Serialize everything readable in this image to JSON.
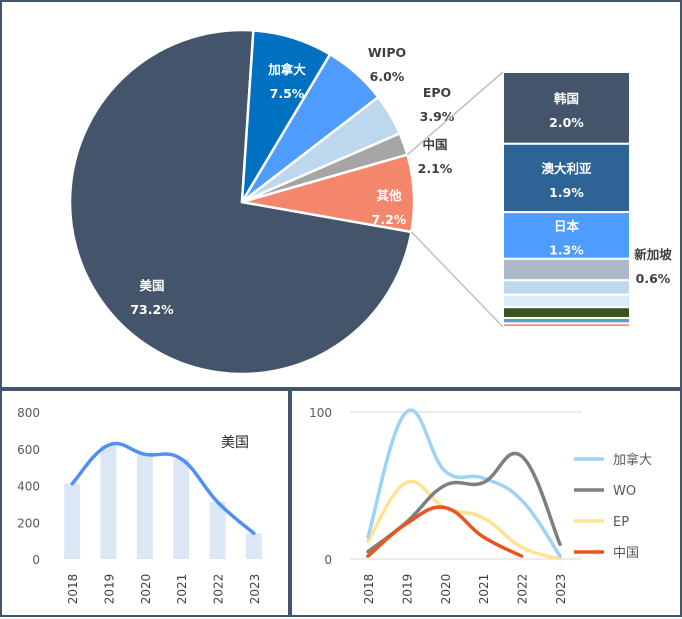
{
  "colors": {
    "us": "#44546a",
    "canada": "#0070c0",
    "wipo": "#4f9cff",
    "epo": "#bdd7ee",
    "china_slice": "#a5a5a5",
    "other": "#f4866c",
    "korea": "#44546a",
    "australia": "#2e6395",
    "japan": "#4f9cff",
    "singapore": "#adb9ca",
    "line_us": "#4f8ff6",
    "bars_us": "#dce7f5",
    "line_canada": "#9dd3f7",
    "line_wo": "#7f7f7f",
    "line_ep": "#ffe393",
    "line_cn": "#e8561f",
    "connector": "#c0c0c0",
    "axis_text": "#595959"
  },
  "chart_data": [
    {
      "type": "pie",
      "slices": [
        {
          "label": "美国",
          "value": 73.2,
          "value_label": "73.2%",
          "color": "#44546a"
        },
        {
          "label": "加拿大",
          "value": 7.5,
          "value_label": "7.5%",
          "color": "#0070c0"
        },
        {
          "label": "WIPO",
          "value": 6.0,
          "value_label": "6.0%",
          "color": "#4f9cff"
        },
        {
          "label": "EPO",
          "value": 3.9,
          "value_label": "3.9%",
          "color": "#bdd7ee"
        },
        {
          "label": "中国",
          "value": 2.1,
          "value_label": "2.1%",
          "color": "#a5a5a5"
        },
        {
          "label": "其他",
          "value": 7.2,
          "value_label": "7.2%",
          "color": "#f4866c"
        }
      ],
      "breakdown_of": "其他",
      "breakdown": [
        {
          "label": "韩国",
          "value": 2.0,
          "value_label": "2.0%",
          "color": "#44546a"
        },
        {
          "label": "澳大利亚",
          "value": 1.9,
          "value_label": "1.9%",
          "color": "#2e6395"
        },
        {
          "label": "日本",
          "value": 1.3,
          "value_label": "1.3%",
          "color": "#4f9cff"
        },
        {
          "label": "新加坡",
          "value": 0.6,
          "value_label": "0.6%",
          "color": "#adb9ca"
        },
        {
          "label": "",
          "value": 0.4,
          "value_label": "",
          "color": "#bdd7ee"
        },
        {
          "label": "",
          "value": 0.35,
          "value_label": "",
          "color": "#ddebf7"
        },
        {
          "label": "",
          "value": 0.3,
          "value_label": "",
          "color": "#375623"
        },
        {
          "label": "",
          "value": 0.15,
          "value_label": "",
          "color": "#5b9bd5"
        },
        {
          "label": "",
          "value": 0.1,
          "value_label": "",
          "color": "#f4866c"
        }
      ]
    },
    {
      "type": "bar",
      "categories": [
        "2018",
        "2019",
        "2020",
        "2021",
        "2022",
        "2023"
      ],
      "series": [
        {
          "name": "美国",
          "values": [
            410,
            620,
            570,
            545,
            310,
            140
          ]
        }
      ],
      "ylim": [
        0,
        800
      ],
      "yticks": [
        "0",
        "200",
        "400",
        "600",
        "800"
      ],
      "overlay": "smoothed line over the same values"
    },
    {
      "type": "line",
      "categories": [
        "2018",
        "2019",
        "2020",
        "2021",
        "2022",
        "2023"
      ],
      "series": [
        {
          "name": "加拿大",
          "values": [
            15,
            100,
            60,
            55,
            40,
            2
          ]
        },
        {
          "name": "WO",
          "values": [
            5,
            25,
            50,
            52,
            70,
            10
          ]
        },
        {
          "name": "EP",
          "values": [
            12,
            52,
            35,
            28,
            8,
            0
          ]
        },
        {
          "name": "中国",
          "values": [
            2,
            24,
            35,
            15,
            2,
            null
          ]
        }
      ],
      "ylim": [
        0,
        100
      ],
      "yticks": [
        "0",
        "100"
      ],
      "grid": true,
      "legend": "right"
    }
  ]
}
